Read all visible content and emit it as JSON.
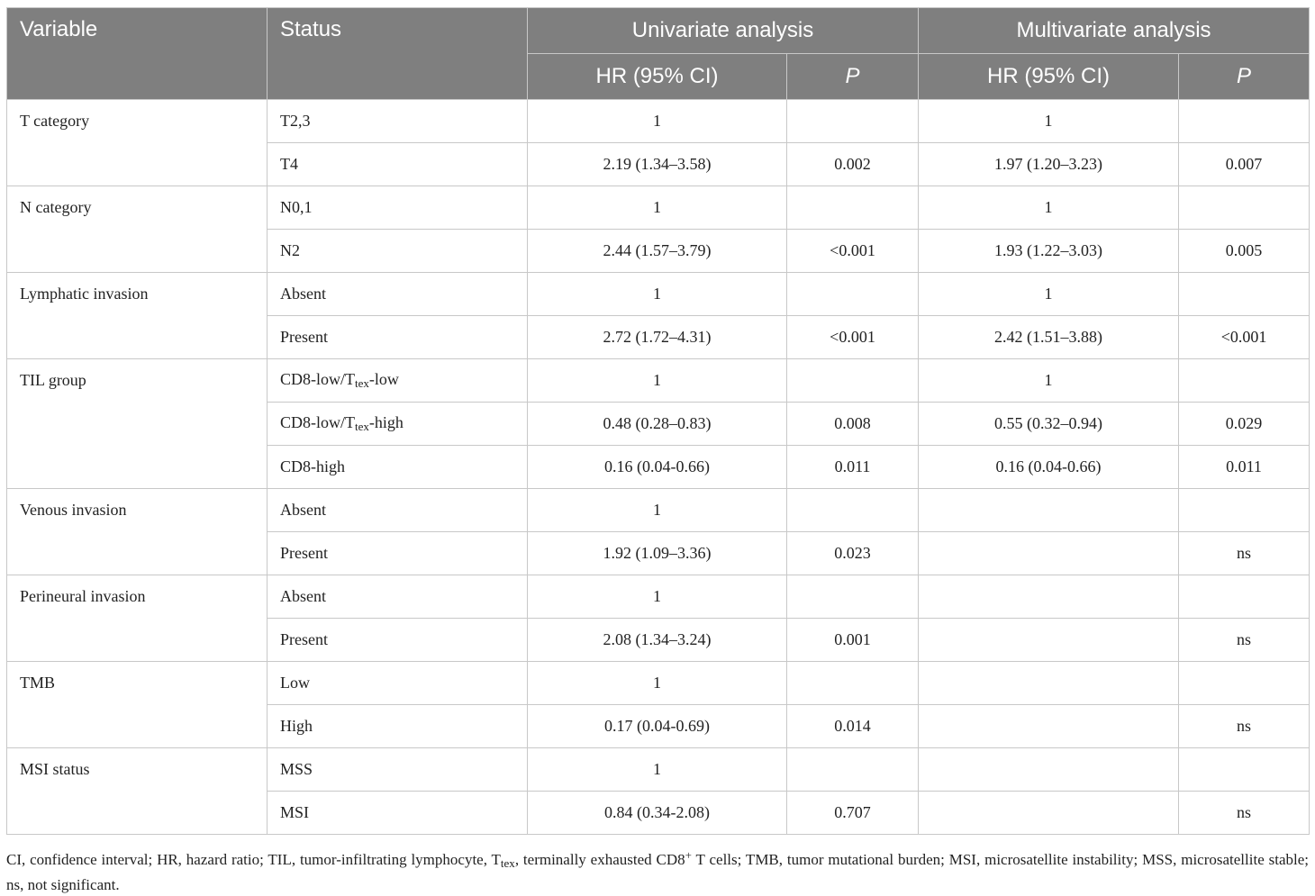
{
  "headers": {
    "variable": "Variable",
    "status": "Status",
    "univariate": "Univariate analysis",
    "multivariate": "Multivariate analysis",
    "hr_ci": "HR (95% CI)",
    "p": "P"
  },
  "rows": {
    "t_category": {
      "label": "T category",
      "r1": {
        "status": "T2,3",
        "uni_hr": "1",
        "uni_p": "",
        "multi_hr": "1",
        "multi_p": ""
      },
      "r2": {
        "status": "T4",
        "uni_hr": "2.19 (1.34–3.58)",
        "uni_p": "0.002",
        "multi_hr": "1.97 (1.20–3.23)",
        "multi_p": "0.007"
      }
    },
    "n_category": {
      "label": "N category",
      "r1": {
        "status": "N0,1",
        "uni_hr": "1",
        "uni_p": "",
        "multi_hr": "1",
        "multi_p": ""
      },
      "r2": {
        "status": "N2",
        "uni_hr": "2.44 (1.57–3.79)",
        "uni_p": "<0.001",
        "multi_hr": "1.93 (1.22–3.03)",
        "multi_p": "0.005"
      }
    },
    "lymphatic": {
      "label": "Lymphatic invasion",
      "r1": {
        "status": "Absent",
        "uni_hr": "1",
        "uni_p": "",
        "multi_hr": "1",
        "multi_p": ""
      },
      "r2": {
        "status": "Present",
        "uni_hr": "2.72 (1.72–4.31)",
        "uni_p": "<0.001",
        "multi_hr": "2.42 (1.51–3.88)",
        "multi_p": "<0.001"
      }
    },
    "til": {
      "label": "TIL group",
      "r1": {
        "status_pre": "CD8-low/T",
        "status_sub": "tex",
        "status_post": "-low",
        "uni_hr": "1",
        "uni_p": "",
        "multi_hr": "1",
        "multi_p": ""
      },
      "r2": {
        "status_pre": "CD8-low/T",
        "status_sub": "tex",
        "status_post": "-high",
        "uni_hr": "0.48 (0.28–0.83)",
        "uni_p": "0.008",
        "multi_hr": "0.55 (0.32–0.94)",
        "multi_p": "0.029"
      },
      "r3": {
        "status": "CD8-high",
        "uni_hr": "0.16 (0.04-0.66)",
        "uni_p": "0.011",
        "multi_hr": "0.16 (0.04-0.66)",
        "multi_p": "0.011"
      }
    },
    "venous": {
      "label": "Venous invasion",
      "r1": {
        "status": "Absent",
        "uni_hr": "1",
        "uni_p": "",
        "multi_hr": "",
        "multi_p": ""
      },
      "r2": {
        "status": "Present",
        "uni_hr": "1.92 (1.09–3.36)",
        "uni_p": "0.023",
        "multi_hr": "",
        "multi_p": "ns"
      }
    },
    "perineural": {
      "label": "Perineural invasion",
      "r1": {
        "status": "Absent",
        "uni_hr": "1",
        "uni_p": "",
        "multi_hr": "",
        "multi_p": ""
      },
      "r2": {
        "status": "Present",
        "uni_hr": "2.08 (1.34–3.24)",
        "uni_p": "0.001",
        "multi_hr": "",
        "multi_p": "ns"
      }
    },
    "tmb": {
      "label": "TMB",
      "r1": {
        "status": "Low",
        "uni_hr": "1",
        "uni_p": "",
        "multi_hr": "",
        "multi_p": ""
      },
      "r2": {
        "status": "High",
        "uni_hr": "0.17 (0.04-0.69)",
        "uni_p": "0.014",
        "multi_hr": "",
        "multi_p": "ns"
      }
    },
    "msi": {
      "label": "MSI status",
      "r1": {
        "status": "MSS",
        "uni_hr": "1",
        "uni_p": "",
        "multi_hr": "",
        "multi_p": ""
      },
      "r2": {
        "status": "MSI",
        "uni_hr": "0.84 (0.34-2.08)",
        "uni_p": "0.707",
        "multi_hr": "",
        "multi_p": "ns"
      }
    }
  },
  "footnote": {
    "part1": "CI, confidence interval; HR, hazard ratio; TIL, tumor-infiltrating lymphocyte, T",
    "sub": "tex",
    "part2": ", terminally exhausted CD8",
    "sup": "+",
    "part3": " T cells; TMB, tumor mutational burden; MSI, microsatellite instability; MSS, microsatellite stable; ns, not significant."
  }
}
